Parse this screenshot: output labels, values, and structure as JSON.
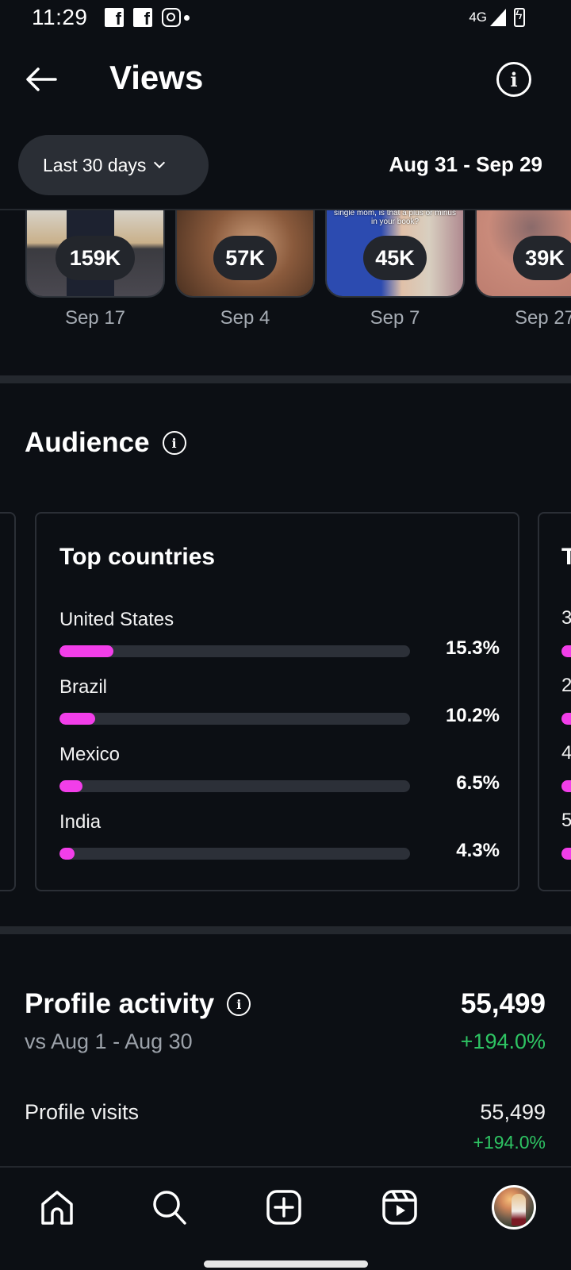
{
  "status_bar": {
    "time": "11:29",
    "notification_icons": [
      "facebook-icon",
      "facebook-icon",
      "instagram-icon",
      "more-dot"
    ],
    "network": "4G",
    "signal_icon": "signal-icon",
    "battery_icon": "battery-charging-icon"
  },
  "header": {
    "back_icon": "arrow-left-icon",
    "title": "Views",
    "info_icon": "info-icon"
  },
  "filter": {
    "range_label": "Last 30 days",
    "dropdown_icon": "chevron-down-icon",
    "date_range": "Aug 31 - Sep 29"
  },
  "top_content": [
    {
      "views": "159K",
      "date": "Sep 17",
      "caption": ""
    },
    {
      "views": "57K",
      "date": "Sep 4",
      "caption": ""
    },
    {
      "views": "45K",
      "date": "Sep 7",
      "caption": "single mom, is that a plus or minus in your book?"
    },
    {
      "views": "39K",
      "date": "Sep 27",
      "caption": ""
    }
  ],
  "audience": {
    "title": "Audience",
    "info_icon": "info-icon",
    "top_countries": {
      "title": "Top countries",
      "accent_color": "#f23ee9",
      "track_color": "#2c3038",
      "items": [
        {
          "name": "United States",
          "percent_label": "15.3%",
          "share": 0.153
        },
        {
          "name": "Brazil",
          "percent_label": "10.2%",
          "share": 0.102
        },
        {
          "name": "Mexico",
          "percent_label": "6.5%",
          "share": 0.065
        },
        {
          "name": "India",
          "percent_label": "4.3%",
          "share": 0.043
        }
      ]
    },
    "next_card_peek": {
      "title_initial": "T",
      "row_initials": [
        "3",
        "2",
        "4",
        "5"
      ]
    }
  },
  "profile_activity": {
    "title": "Profile activity",
    "info_icon": "info-icon",
    "comparison": "vs Aug 1 - Aug 30",
    "total": "55,499",
    "change": "+194.0%",
    "positive_color": "#2ec463",
    "rows": [
      {
        "label": "Profile visits",
        "value": "55,499",
        "change": "+194.0%"
      }
    ]
  },
  "bottom_nav": {
    "items": [
      {
        "name": "home",
        "icon": "home-icon"
      },
      {
        "name": "search",
        "icon": "search-icon"
      },
      {
        "name": "create",
        "icon": "add-post-icon"
      },
      {
        "name": "reels",
        "icon": "reels-icon"
      },
      {
        "name": "profile",
        "icon": "avatar"
      }
    ]
  }
}
